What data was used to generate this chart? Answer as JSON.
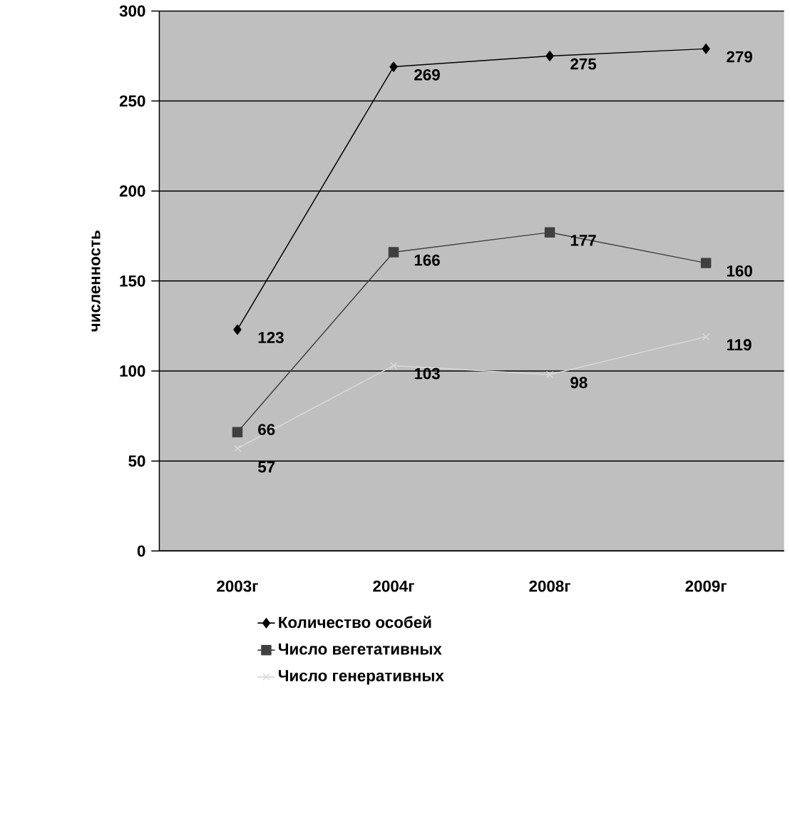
{
  "chart_data": {
    "type": "line",
    "ylabel": "численность",
    "categories": [
      "2003г",
      "2004г",
      "2008г",
      "2009г"
    ],
    "series": [
      {
        "name": "Количество особей",
        "color": "#000000",
        "marker": "diamond",
        "values": [
          123,
          269,
          275,
          279
        ]
      },
      {
        "name": "Число вегетативных",
        "color": "#404040",
        "marker": "square",
        "values": [
          66,
          166,
          177,
          160
        ]
      },
      {
        "name": "Число генеративных",
        "color": "#d9d9d9",
        "marker": "cross",
        "values": [
          57,
          103,
          98,
          119
        ]
      }
    ],
    "ylim": [
      0,
      300
    ],
    "yticks": [
      0,
      50,
      100,
      150,
      200,
      250,
      300
    ],
    "grid": "y",
    "legend": "bottom",
    "data_labels": true
  }
}
